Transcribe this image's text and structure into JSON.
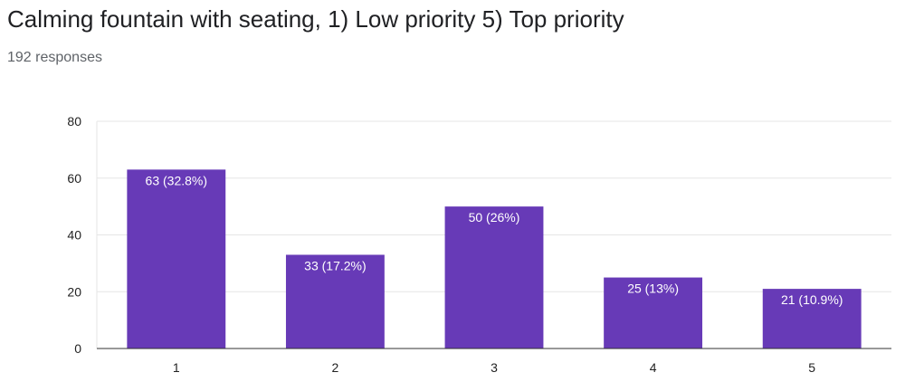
{
  "chart_data": {
    "type": "bar",
    "title": "Calming fountain with seating, 1) Low priority 5) Top priority",
    "subtitle": "192 responses",
    "categories": [
      "1",
      "2",
      "3",
      "4",
      "5"
    ],
    "values": [
      63,
      33,
      50,
      25,
      21
    ],
    "data_labels": [
      "63 (32.8%)",
      "33 (17.2%)",
      "50 (26%)",
      "25 (13%)",
      "21 (10.9%)"
    ],
    "yticks": [
      0,
      20,
      40,
      60,
      80
    ],
    "ylim": [
      0,
      80
    ],
    "xlabel": "",
    "ylabel": "",
    "grid": true,
    "bar_color": "#673ab7"
  }
}
